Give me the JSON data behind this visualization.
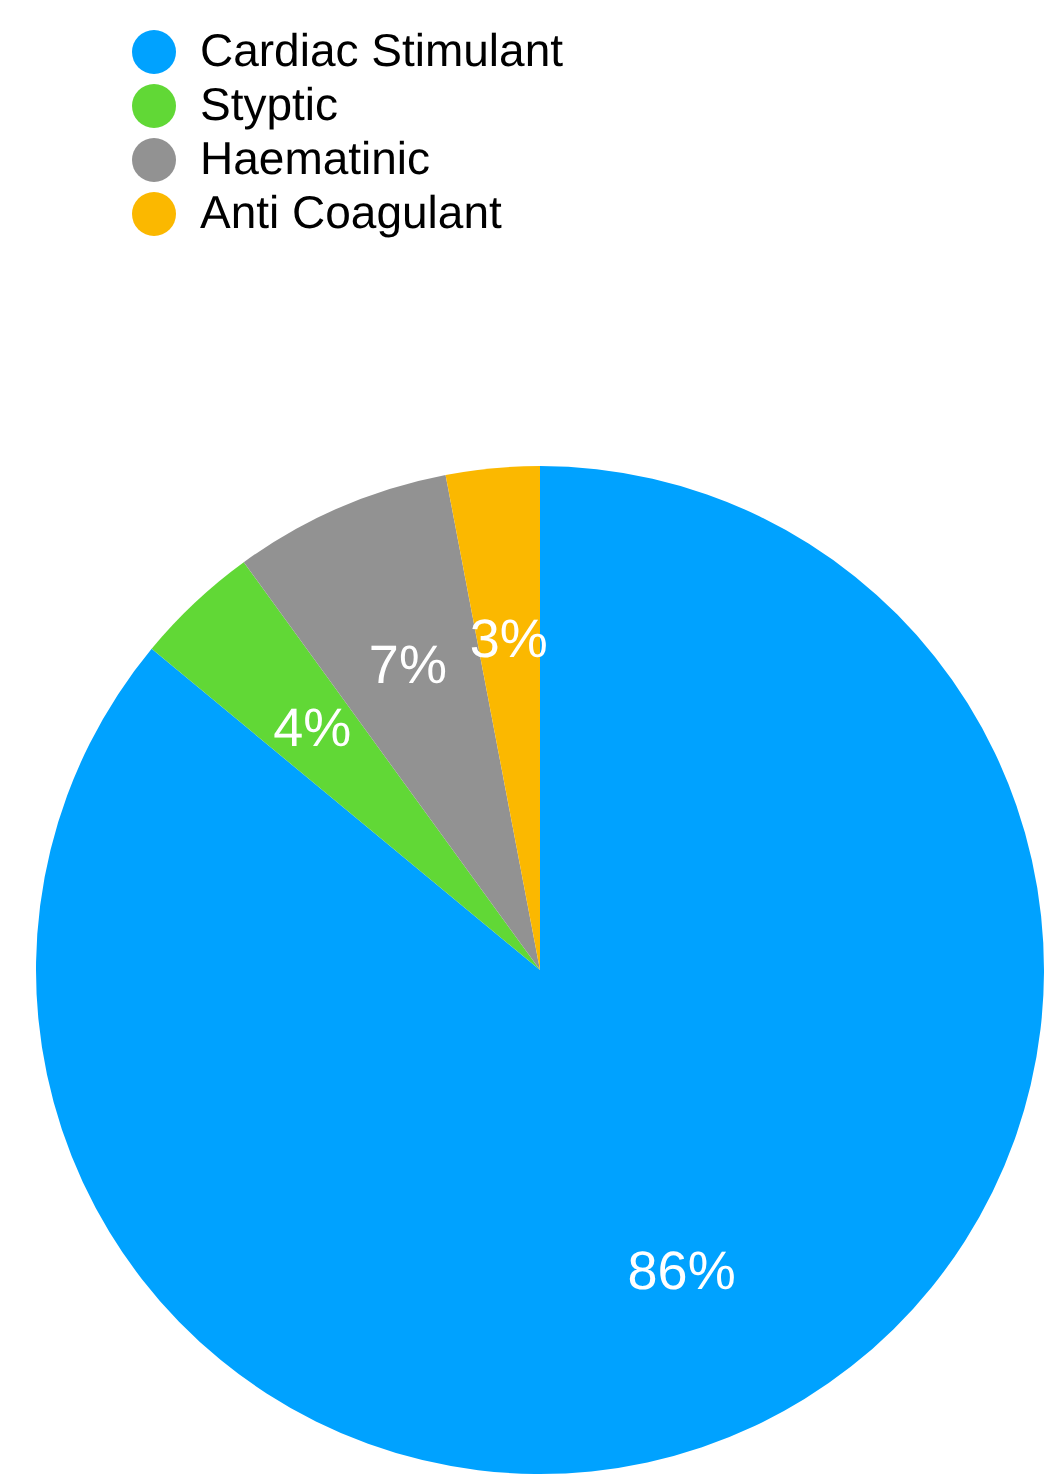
{
  "chart_data": {
    "type": "pie",
    "categories": [
      "Cardiac Stimulant",
      "Styptic",
      "Haematinic",
      "Anti Coagulant"
    ],
    "values": [
      86,
      4,
      7,
      3
    ],
    "colors": [
      "#00a2ff",
      "#61d836",
      "#929292",
      "#fbb800"
    ],
    "value_labels": [
      "86%",
      "4%",
      "7%",
      "3%"
    ],
    "legend": "top left"
  }
}
